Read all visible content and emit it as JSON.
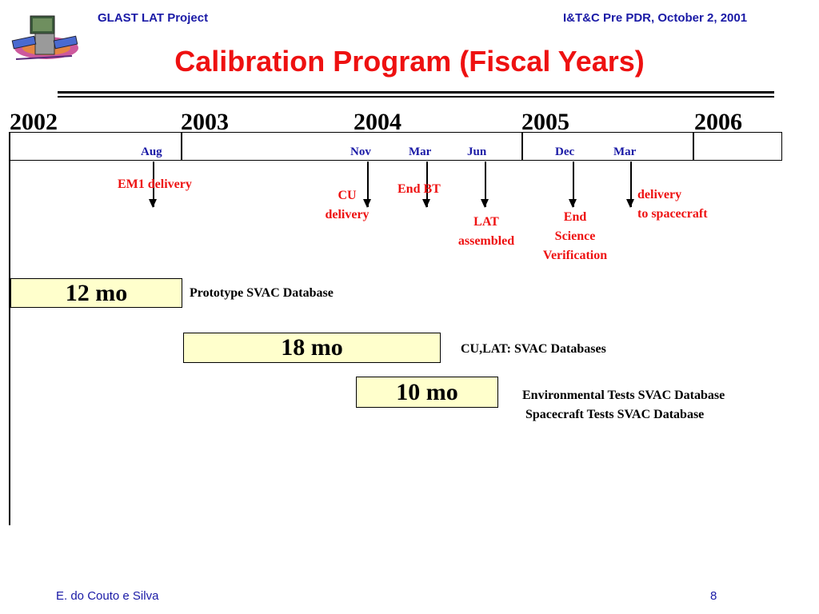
{
  "header": {
    "project": "GLAST LAT Project",
    "meeting": "I&T&C Pre PDR, October 2, 2001"
  },
  "title": "Calibration Program (Fiscal Years)",
  "timeline": {
    "years": [
      "2002",
      "2003",
      "2004",
      "2005",
      "2006"
    ],
    "months": [
      "Aug",
      "Nov",
      "Mar",
      "Jun",
      "Dec",
      "Mar"
    ]
  },
  "milestones": [
    {
      "lines": [
        "EM1 delivery"
      ]
    },
    {
      "lines": [
        "CU",
        "delivery"
      ]
    },
    {
      "lines": [
        "End BT"
      ]
    },
    {
      "lines": [
        "LAT",
        "assembled"
      ]
    },
    {
      "lines": [
        "End",
        "Science",
        "Verification"
      ]
    },
    {
      "lines": [
        "delivery",
        "to spacecraft"
      ]
    }
  ],
  "phases": [
    {
      "duration": "12 mo",
      "description": [
        "Prototype SVAC Database"
      ]
    },
    {
      "duration": "18 mo",
      "description": [
        "CU,LAT: SVAC Databases"
      ]
    },
    {
      "duration": "10 mo",
      "description": [
        "Environmental Tests SVAC Database",
        " Spacecraft Tests SVAC Database"
      ]
    }
  ],
  "footer": {
    "author": "E. do Couto e Silva",
    "page": "8"
  },
  "colors": {
    "title": "#ee1111",
    "header_text": "#1a1aa6",
    "month_text": "#1a1aa6",
    "milestone_text": "#ee1111",
    "phase_fill": "#ffffcc"
  },
  "icons": [
    "glast-satellite-logo-icon"
  ]
}
